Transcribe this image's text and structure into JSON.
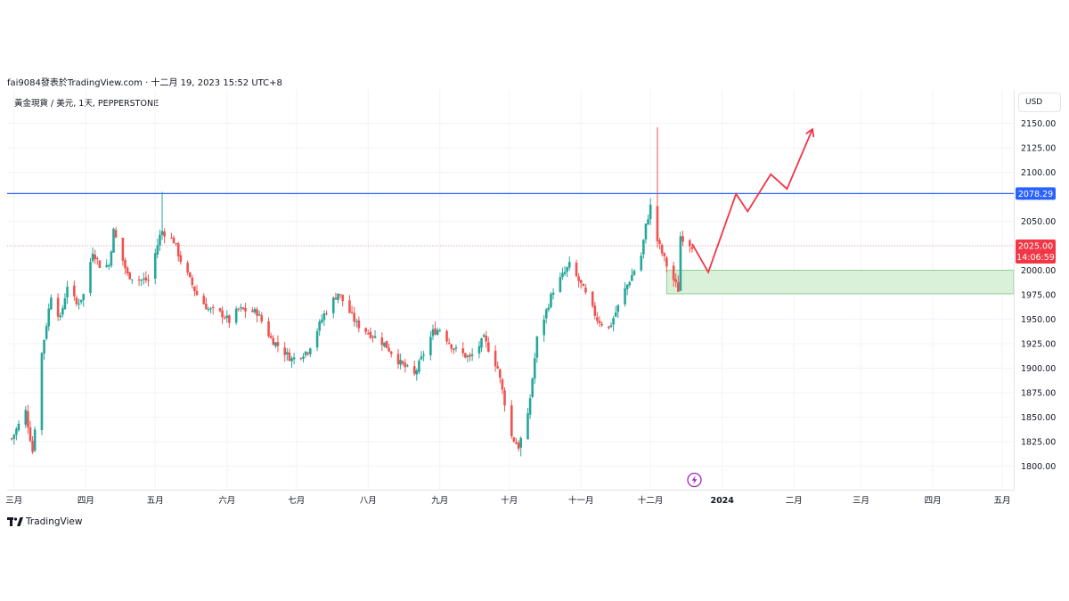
{
  "header": {
    "publisher": "fai9084發表於TradingView.com · 十二月 19, 2023 15:52 UTC+8",
    "symbol": "黃金現貨 / 美元, 1天, PEPPERSTONE"
  },
  "currency_button": "USD",
  "price_labels": {
    "resistance": "2078.29",
    "last_price": "2025.00",
    "countdown": "14:06:59"
  },
  "footer": {
    "brand": "TradingView"
  },
  "icons": {
    "flash": "flash-icon",
    "logo": "tradingview-logo-icon"
  },
  "colors": {
    "up": "#26a69a",
    "down": "#ef5350",
    "resistance_line": "#2962ff",
    "projection": "#f23645",
    "zone_fill": "#d9f0d9",
    "zone_stroke": "#81c784",
    "last_price_line": "#f7a6a6",
    "event_icon": "#9c27b0"
  },
  "chart_data": {
    "type": "candlestick",
    "y_axis": {
      "min": 1780,
      "max": 2170,
      "ticks": [
        "1800.00",
        "1825.00",
        "1850.00",
        "1875.00",
        "1900.00",
        "1925.00",
        "1950.00",
        "1975.00",
        "2000.00",
        "2025.00",
        "2050.00",
        "2075.00",
        "2100.00",
        "2125.00",
        "2150.00"
      ],
      "tick_values": [
        1800,
        1825,
        1850,
        1875,
        1900,
        1925,
        1950,
        1975,
        2000,
        2025,
        2050,
        2075,
        2100,
        2125,
        2150
      ]
    },
    "x_axis": {
      "labels": [
        "三月",
        "四月",
        "五月",
        "六月",
        "七月",
        "八月",
        "九月",
        "十月",
        "十一月",
        "十二月",
        "2024",
        "二月",
        "三月",
        "四月",
        "五月"
      ],
      "label_dates": [
        "2023-03-01",
        "2023-04-01",
        "2023-05-01",
        "2023-06-01",
        "2023-07-01",
        "2023-08-01",
        "2023-09-01",
        "2023-10-01",
        "2023-11-01",
        "2023-12-01",
        "2024-01-01",
        "2024-02-01",
        "2024-03-01",
        "2024-04-01",
        "2024-05-01"
      ],
      "bold_labels": [
        "2024"
      ],
      "start_date": "2023-02-26",
      "end_date": "2024-05-06"
    },
    "price_anchors": [
      [
        "2023-02-28",
        1828
      ],
      [
        "2023-03-06",
        1856
      ],
      [
        "2023-03-09",
        1815
      ],
      [
        "2023-03-13",
        1915
      ],
      [
        "2023-03-17",
        1975
      ],
      [
        "2023-03-21",
        1950
      ],
      [
        "2023-03-24",
        1985
      ],
      [
        "2023-03-28",
        1965
      ],
      [
        "2023-03-31",
        1975
      ],
      [
        "2023-04-04",
        2020
      ],
      [
        "2023-04-07",
        2005
      ],
      [
        "2023-04-11",
        2005
      ],
      [
        "2023-04-13",
        2040
      ],
      [
        "2023-04-19",
        1995
      ],
      [
        "2023-04-25",
        1990
      ],
      [
        "2023-04-28",
        1990
      ],
      [
        "2023-05-03",
        2035
      ],
      [
        "2023-05-04",
        2040
      ],
      [
        "2023-05-09",
        2030
      ],
      [
        "2023-05-12",
        2010
      ],
      [
        "2023-05-16",
        1990
      ],
      [
        "2023-05-19",
        1975
      ],
      [
        "2023-05-24",
        1960
      ],
      [
        "2023-05-30",
        1955
      ],
      [
        "2023-06-02",
        1948
      ],
      [
        "2023-06-06",
        1960
      ],
      [
        "2023-06-14",
        1957
      ],
      [
        "2023-06-20",
        1930
      ],
      [
        "2023-06-29",
        1909
      ],
      [
        "2023-07-06",
        1918
      ],
      [
        "2023-07-13",
        1955
      ],
      [
        "2023-07-19",
        1977
      ],
      [
        "2023-07-27",
        1945
      ],
      [
        "2023-08-02",
        1935
      ],
      [
        "2023-08-08",
        1925
      ],
      [
        "2023-08-15",
        1905
      ],
      [
        "2023-08-21",
        1893
      ],
      [
        "2023-08-29",
        1937
      ],
      [
        "2023-09-01",
        1940
      ],
      [
        "2023-09-07",
        1920
      ],
      [
        "2023-09-14",
        1910
      ],
      [
        "2023-09-20",
        1930
      ],
      [
        "2023-09-26",
        1900
      ],
      [
        "2023-10-02",
        1830
      ],
      [
        "2023-10-05",
        1820
      ],
      [
        "2023-10-09",
        1850
      ],
      [
        "2023-10-13",
        1930
      ],
      [
        "2023-10-20",
        1980
      ],
      [
        "2023-10-27",
        2005
      ],
      [
        "2023-11-01",
        1985
      ],
      [
        "2023-11-08",
        1950
      ],
      [
        "2023-11-13",
        1940
      ],
      [
        "2023-11-20",
        1980
      ],
      [
        "2023-11-27",
        2015
      ],
      [
        "2023-11-29",
        2045
      ],
      [
        "2023-12-01",
        2065
      ],
      [
        "2023-12-04",
        2030
      ],
      [
        "2023-12-08",
        2005
      ],
      [
        "2023-12-13",
        1980
      ],
      [
        "2023-12-14",
        2035
      ],
      [
        "2023-12-19",
        2025
      ]
    ],
    "wicks": [
      {
        "date": "2023-05-04",
        "high": 2080
      },
      {
        "date": "2023-12-04",
        "high": 2146
      },
      {
        "date": "2023-10-06",
        "low": 1810
      }
    ],
    "resistance_line": {
      "value": 2078.29
    },
    "last_price_line": {
      "value": 2025.0
    },
    "demand_zone": {
      "from": "2023-12-08",
      "to": "2024-05-06",
      "low": 1976,
      "high": 2000
    },
    "projection_path": [
      [
        "2023-12-19",
        2027
      ],
      [
        "2023-12-26",
        1998
      ],
      [
        "2024-01-07",
        2078
      ],
      [
        "2024-01-12",
        2060
      ],
      [
        "2024-01-22",
        2098
      ],
      [
        "2024-01-29",
        2083
      ],
      [
        "2024-02-09",
        2144
      ]
    ],
    "event_marker": {
      "date": "2023-12-20"
    }
  }
}
